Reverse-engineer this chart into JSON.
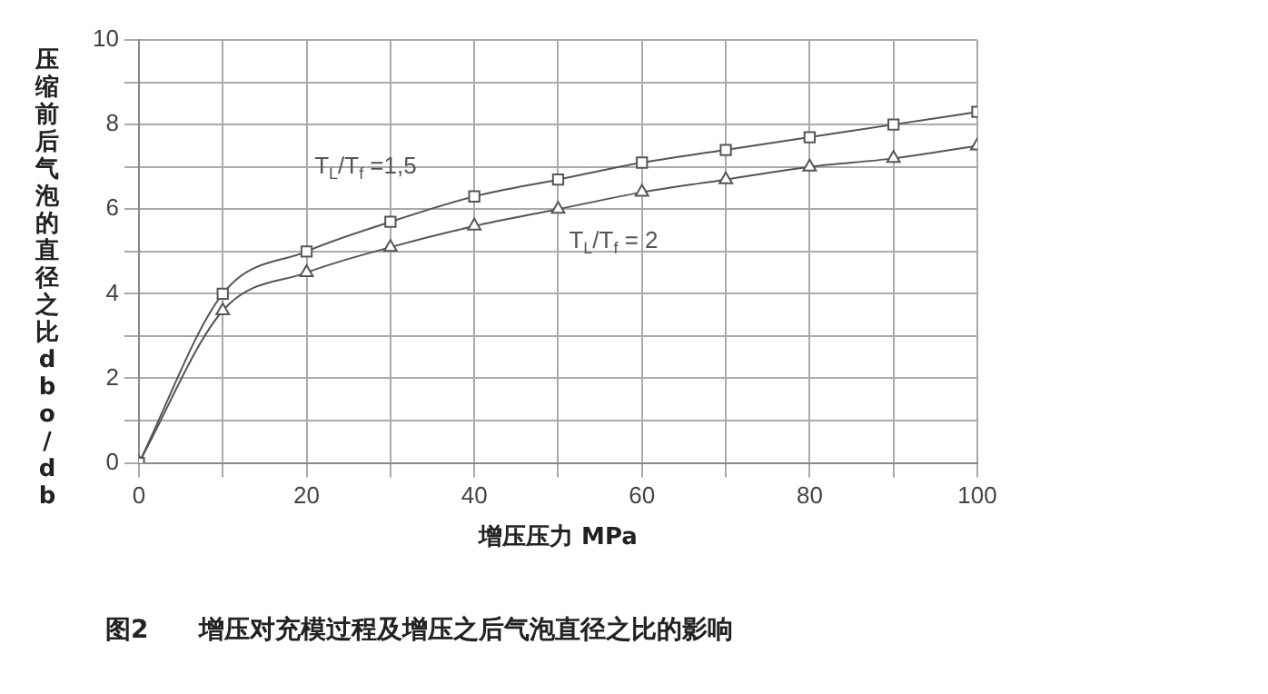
{
  "chart_data": {
    "type": "line",
    "title": "图2　　增压对充模过程及增压之后气泡直径之比的影响",
    "xlabel": "增压压力 MPa",
    "ylabel": "压缩前后气泡的直径之比dbo/db",
    "x": [
      0,
      10,
      20,
      30,
      40,
      50,
      60,
      70,
      80,
      90,
      100
    ],
    "series": [
      {
        "name": "T$_{L}$/T$_{f}$ =1,5",
        "color": "#555555",
        "marker": "square",
        "values": [
          0,
          4.0,
          5.0,
          5.7,
          6.3,
          6.7,
          7.1,
          7.4,
          7.7,
          8.0,
          8.3
        ]
      },
      {
        "name": "T$_{L}$/T$_{f}$ = 2",
        "color": "#555555",
        "marker": "triangle",
        "values": [
          0,
          3.6,
          4.5,
          5.1,
          5.6,
          6.0,
          6.4,
          6.7,
          7.0,
          7.2,
          7.5
        ]
      }
    ],
    "xlim": [
      0,
      100
    ],
    "xticks": [
      0,
      {
        "value": 10,
        "label": null
      },
      20,
      {
        "value": 30,
        "label": null
      },
      40,
      {
        "value": 50,
        "label": null
      },
      60,
      {
        "value": 70,
        "label": null
      },
      80,
      {
        "value": 90,
        "label": null
      },
      100
    ],
    "ylim": [
      0,
      10
    ],
    "yticks": [
      0,
      {
        "value": 1,
        "label": null
      },
      2,
      {
        "value": 3,
        "label": null
      },
      4,
      {
        "value": 5,
        "label": null
      },
      6,
      {
        "value": 7,
        "label": null
      },
      8,
      {
        "value": 9,
        "label": null
      },
      10
    ],
    "grid": true,
    "legend": false
  }
}
